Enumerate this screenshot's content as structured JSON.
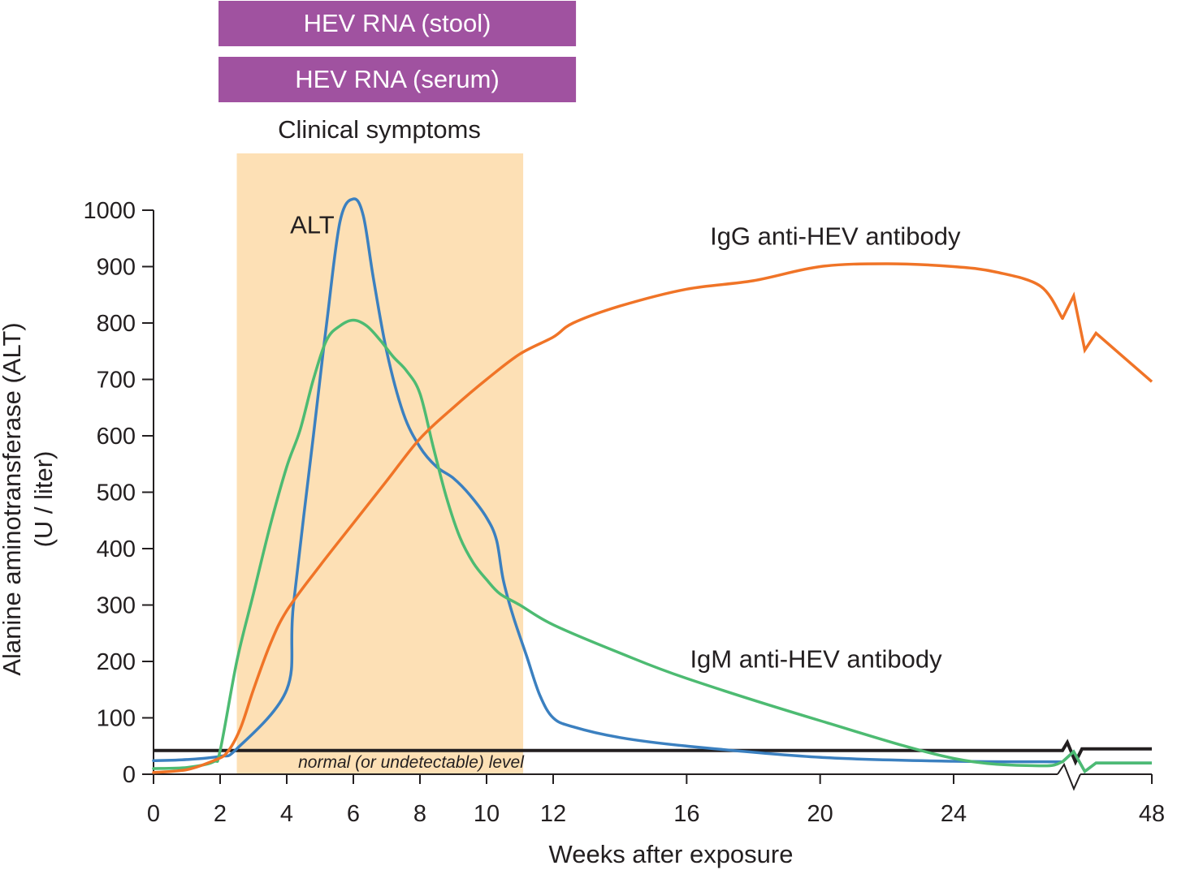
{
  "colors": {
    "rna_bar": "#a052a0",
    "symptoms_band": "#fde0b5",
    "alt": "#3b80c0",
    "igm": "#4dbb72",
    "igg": "#f07427",
    "normal_line": "#231f20",
    "axis": "#231f20"
  },
  "bars": [
    {
      "id": "rna-stool",
      "label": "HEV RNA (stool)",
      "start_week": 2,
      "end_week": 13
    },
    {
      "id": "rna-serum",
      "label": "HEV RNA (serum)",
      "start_week": 2,
      "end_week": 13
    }
  ],
  "symptoms": {
    "label": "Clinical symptoms",
    "start_week": 2.5,
    "end_week": 11.1
  },
  "chart_data": {
    "type": "line",
    "xlabel": "Weeks after exposure",
    "ylabel": "Alanine aminotransferase (ALT)",
    "ylabel2": "(U / liter)",
    "x_ticks": [
      0,
      2,
      4,
      6,
      8,
      10,
      12,
      16,
      20,
      24,
      48
    ],
    "y_ticks": [
      0,
      100,
      200,
      300,
      400,
      500,
      600,
      700,
      800,
      900,
      1000
    ],
    "ylim": [
      0,
      1000
    ],
    "axis_break_between": [
      24,
      48
    ],
    "normal_level": {
      "value": 42,
      "label": "normal (or undetectable) level"
    },
    "series": [
      {
        "name": "ALT",
        "color": "alt",
        "label_at": [
          4.1,
          975
        ],
        "points": [
          [
            0,
            24
          ],
          [
            1,
            26
          ],
          [
            2,
            32
          ],
          [
            2.5,
            45
          ],
          [
            4,
            150
          ],
          [
            4.2,
            300
          ],
          [
            4.8,
            600
          ],
          [
            5.2,
            800
          ],
          [
            5.6,
            980
          ],
          [
            6,
            1020
          ],
          [
            6.3,
            990
          ],
          [
            6.6,
            880
          ],
          [
            7,
            750
          ],
          [
            7.5,
            640
          ],
          [
            8,
            580
          ],
          [
            8.5,
            545
          ],
          [
            9,
            525
          ],
          [
            9.5,
            495
          ],
          [
            10,
            455
          ],
          [
            10.3,
            415
          ],
          [
            10.5,
            345
          ],
          [
            10.8,
            280
          ],
          [
            11.2,
            210
          ],
          [
            11.6,
            140
          ],
          [
            12,
            100
          ],
          [
            12.6,
            84
          ],
          [
            14,
            65
          ],
          [
            16,
            50
          ],
          [
            20,
            30
          ],
          [
            24,
            23
          ],
          [
            26.5,
            22
          ]
        ],
        "post_break": [
          [
            26.5,
            22
          ],
          [
            27,
            40
          ],
          [
            27.5,
            5
          ],
          [
            28,
            20
          ],
          [
            30.5,
            20
          ]
        ]
      },
      {
        "name": "IgM anti-HEV antibody",
        "color": "igm",
        "label_at": [
          16.1,
          205
        ],
        "points": [
          [
            0,
            10
          ],
          [
            1,
            12
          ],
          [
            1.8,
            22
          ],
          [
            2,
            42
          ],
          [
            2.5,
            200
          ],
          [
            3,
            320
          ],
          [
            3.5,
            440
          ],
          [
            4,
            545
          ],
          [
            4.4,
            610
          ],
          [
            4.8,
            700
          ],
          [
            5.2,
            770
          ],
          [
            5.6,
            795
          ],
          [
            6,
            805
          ],
          [
            6.4,
            795
          ],
          [
            6.8,
            770
          ],
          [
            7.2,
            740
          ],
          [
            7.6,
            715
          ],
          [
            8,
            675
          ],
          [
            8.4,
            580
          ],
          [
            8.8,
            490
          ],
          [
            9.2,
            420
          ],
          [
            9.6,
            375
          ],
          [
            10,
            345
          ],
          [
            10.4,
            320
          ],
          [
            11,
            300
          ],
          [
            12,
            265
          ],
          [
            14,
            215
          ],
          [
            16,
            170
          ],
          [
            20,
            95
          ],
          [
            24,
            28
          ],
          [
            26,
            15
          ],
          [
            26.5,
            22
          ]
        ],
        "post_break": [
          [
            26.5,
            22
          ],
          [
            27,
            40
          ],
          [
            27.5,
            5
          ],
          [
            28,
            20
          ],
          [
            30.5,
            20
          ]
        ]
      },
      {
        "name": "IgG anti-HEV antibody",
        "color": "igg",
        "label_at": [
          16.7,
          955
        ],
        "points": [
          [
            0,
            3
          ],
          [
            1,
            8
          ],
          [
            1.8,
            24
          ],
          [
            2.2,
            38
          ],
          [
            2.6,
            80
          ],
          [
            3,
            150
          ],
          [
            3.5,
            230
          ],
          [
            4,
            290
          ],
          [
            5,
            370
          ],
          [
            6,
            445
          ],
          [
            7,
            520
          ],
          [
            8,
            595
          ],
          [
            9,
            650
          ],
          [
            10,
            700
          ],
          [
            11,
            745
          ],
          [
            12,
            775
          ],
          [
            12.6,
            800
          ],
          [
            14,
            830
          ],
          [
            16,
            860
          ],
          [
            18,
            875
          ],
          [
            20,
            900
          ],
          [
            22,
            905
          ],
          [
            24,
            900
          ],
          [
            25,
            890
          ],
          [
            26,
            865
          ],
          [
            26.5,
            808
          ]
        ],
        "post_break": [
          [
            26.5,
            808
          ],
          [
            27,
            848
          ],
          [
            27.5,
            752
          ],
          [
            28,
            782
          ],
          [
            30.5,
            696
          ]
        ]
      }
    ]
  }
}
